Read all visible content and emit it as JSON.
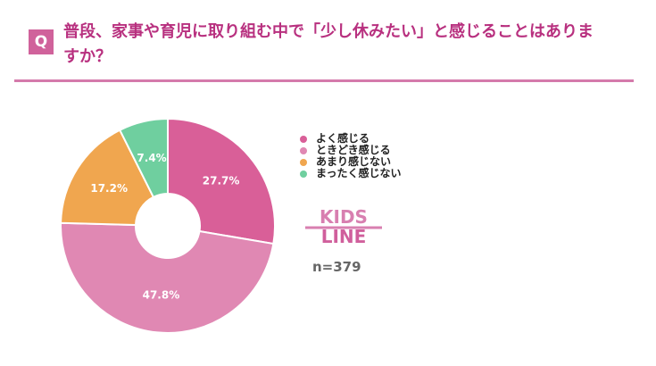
{
  "header": {
    "q_badge": "Q",
    "title": "普段、家事や育児に取り組む中で「少し休みたい」と感じることはありますか？"
  },
  "chart_data": {
    "type": "pie",
    "donut": true,
    "start": "top-clockwise",
    "categories": [
      "よく感じる",
      "ときどき感じる",
      "あまり感じない",
      "まったく感じない"
    ],
    "values": [
      27.7,
      47.8,
      17.2,
      7.4
    ],
    "labels": [
      "27.7%",
      "47.8%",
      "17.2%",
      "7.4%"
    ],
    "colors": [
      "#d95f98",
      "#e088b3",
      "#f0a64f",
      "#6fcf9f"
    ],
    "legend_position": "right"
  },
  "sample": "n=379",
  "logo": "KIDS LINE"
}
